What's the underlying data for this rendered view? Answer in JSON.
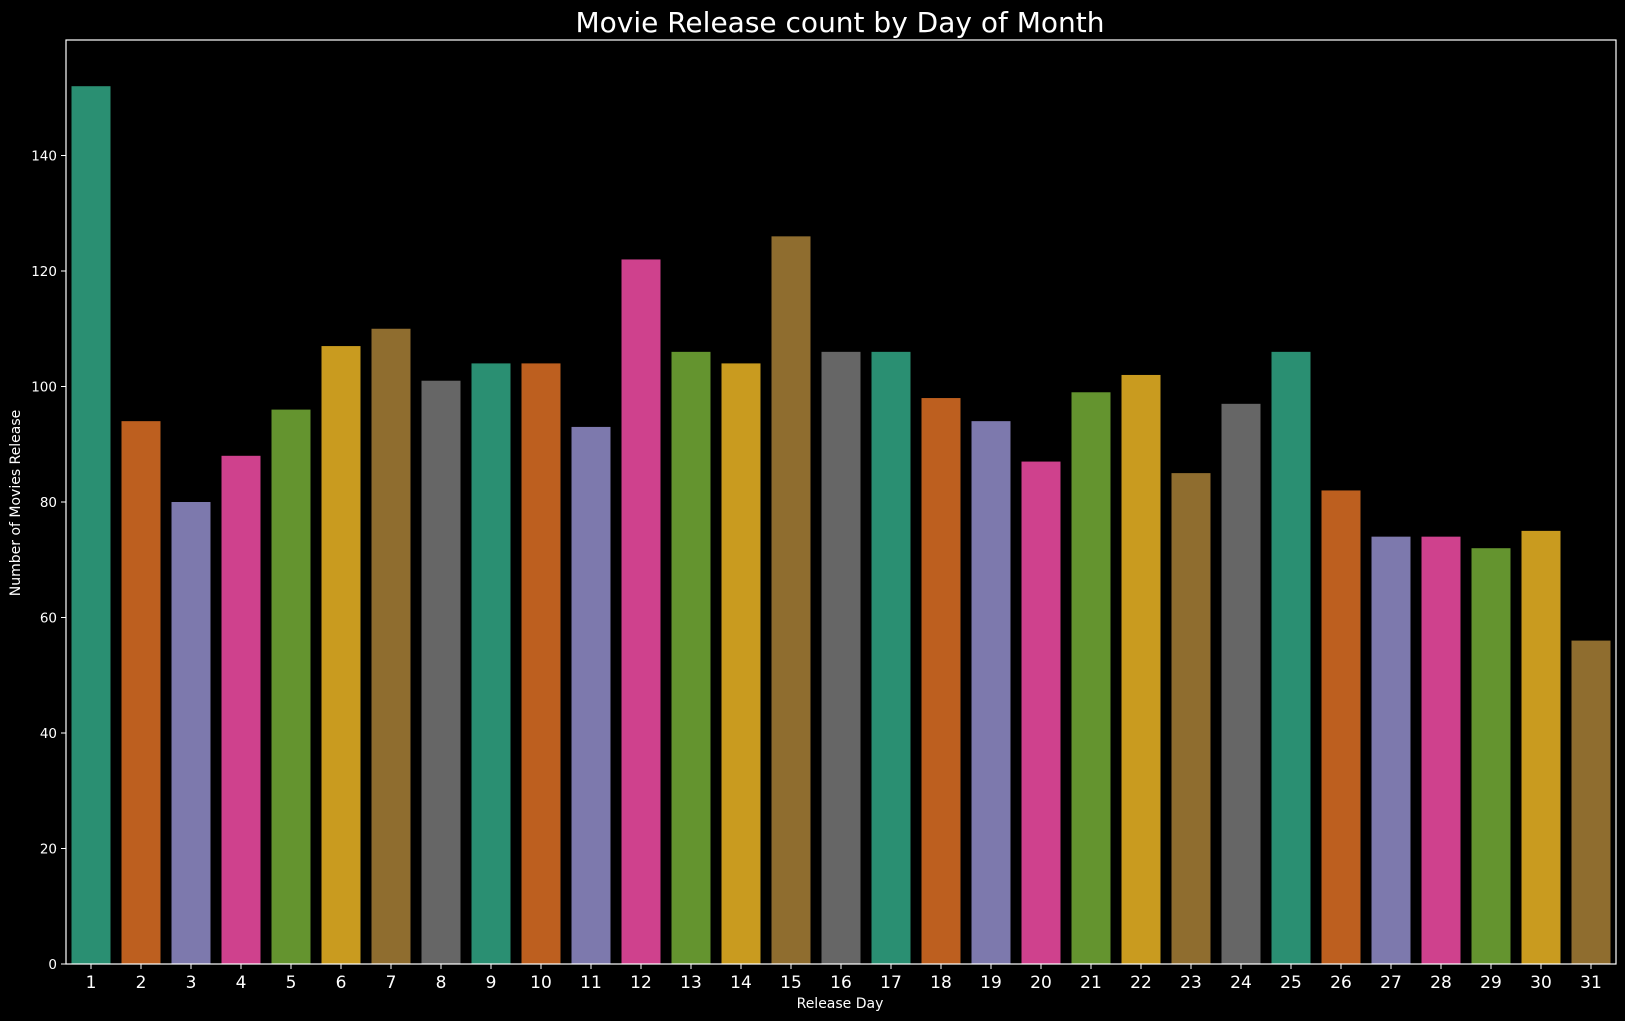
{
  "chart_data": {
    "type": "bar",
    "title": "Movie Release count by Day of Month",
    "xlabel": "Release Day",
    "ylabel": "Number of Movies Release",
    "categories": [
      "1",
      "2",
      "3",
      "4",
      "5",
      "6",
      "7",
      "8",
      "9",
      "10",
      "11",
      "12",
      "13",
      "14",
      "15",
      "16",
      "17",
      "18",
      "19",
      "20",
      "21",
      "22",
      "23",
      "24",
      "25",
      "26",
      "27",
      "28",
      "29",
      "30",
      "31"
    ],
    "values": [
      152,
      94,
      80,
      88,
      96,
      107,
      110,
      101,
      104,
      104,
      93,
      122,
      106,
      104,
      126,
      106,
      106,
      98,
      94,
      87,
      99,
      102,
      85,
      97,
      106,
      82,
      74,
      74,
      72,
      75,
      56
    ],
    "ylim": [
      0,
      160
    ],
    "yticks": [
      0,
      20,
      40,
      60,
      80,
      100,
      120,
      140
    ],
    "grid": false,
    "palette": [
      "#2a8f72",
      "#bd5f1f",
      "#7d79ad",
      "#cf418d",
      "#64942f",
      "#c99b1f",
      "#8f6d2f",
      "#666666"
    ],
    "background": "#000000",
    "foreground": "#ffffff"
  }
}
